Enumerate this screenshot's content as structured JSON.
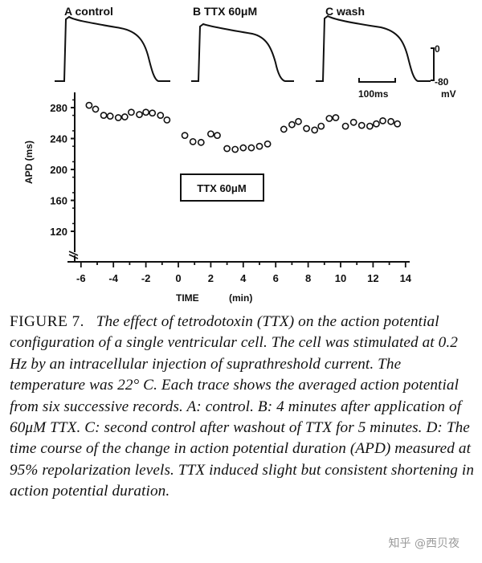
{
  "traces": {
    "panels": [
      {
        "label": "A control"
      },
      {
        "label": "B TTX 60μM"
      },
      {
        "label": "C wash"
      }
    ],
    "scale_bar": {
      "time_label": "100ms",
      "v_top_label": "0",
      "v_bottom_label": "-80",
      "v_unit": "mV"
    }
  },
  "chart_data": {
    "type": "scatter",
    "xlabel": "TIME",
    "xunit": "(min)",
    "ylabel": "APD (ms)",
    "xlim": [
      -7,
      14.6
    ],
    "ylim": [
      110,
      290
    ],
    "x_ticks": [
      -6,
      -4,
      -2,
      0,
      2,
      4,
      6,
      8,
      10,
      12,
      14
    ],
    "y_ticks": [
      120,
      160,
      200,
      240,
      280
    ],
    "y_break": true,
    "annotation": "TTX 60μM",
    "series": [
      {
        "name": "APD",
        "points": [
          {
            "x": -5.5,
            "y": 283
          },
          {
            "x": -5.1,
            "y": 278
          },
          {
            "x": -4.6,
            "y": 270
          },
          {
            "x": -4.2,
            "y": 269
          },
          {
            "x": -3.7,
            "y": 267
          },
          {
            "x": -3.3,
            "y": 268
          },
          {
            "x": -2.9,
            "y": 274
          },
          {
            "x": -2.4,
            "y": 271
          },
          {
            "x": -2.0,
            "y": 274
          },
          {
            "x": -1.6,
            "y": 273
          },
          {
            "x": -1.1,
            "y": 270
          },
          {
            "x": -0.7,
            "y": 264
          },
          {
            "x": 0.4,
            "y": 244
          },
          {
            "x": 0.9,
            "y": 236
          },
          {
            "x": 1.4,
            "y": 235
          },
          {
            "x": 2.0,
            "y": 246
          },
          {
            "x": 2.4,
            "y": 244
          },
          {
            "x": 3.0,
            "y": 227
          },
          {
            "x": 3.5,
            "y": 226
          },
          {
            "x": 4.0,
            "y": 228
          },
          {
            "x": 4.5,
            "y": 228
          },
          {
            "x": 5.0,
            "y": 230
          },
          {
            "x": 5.5,
            "y": 233
          },
          {
            "x": 6.5,
            "y": 252
          },
          {
            "x": 7.0,
            "y": 258
          },
          {
            "x": 7.4,
            "y": 262
          },
          {
            "x": 7.9,
            "y": 253
          },
          {
            "x": 8.4,
            "y": 251
          },
          {
            "x": 8.8,
            "y": 256
          },
          {
            "x": 9.3,
            "y": 266
          },
          {
            "x": 9.7,
            "y": 267
          },
          {
            "x": 10.3,
            "y": 256
          },
          {
            "x": 10.8,
            "y": 261
          },
          {
            "x": 11.3,
            "y": 257
          },
          {
            "x": 11.8,
            "y": 256
          },
          {
            "x": 12.2,
            "y": 259
          },
          {
            "x": 12.6,
            "y": 263
          },
          {
            "x": 13.1,
            "y": 262
          },
          {
            "x": 13.5,
            "y": 259
          }
        ]
      }
    ]
  },
  "caption": {
    "label": "FIGURE 7.",
    "text": "The effect of tetrodotoxin (TTX) on the action potential configuration of a single ventricular cell. The cell was stimulated at 0.2 Hz by an intracellular injection of suprathreshold current. The temperature was 22° C. Each trace shows the averaged action potential from six successive records. A: control. B: 4 minutes after application of 60μM TTX. C: second control after washout of TTX for 5 minutes. D: The time course of the change in action potential duration (APD) measured at 95% repolarization levels. TTX induced slight but consistent shortening in action potential duration."
  },
  "watermark": "知乎 @西贝夜"
}
